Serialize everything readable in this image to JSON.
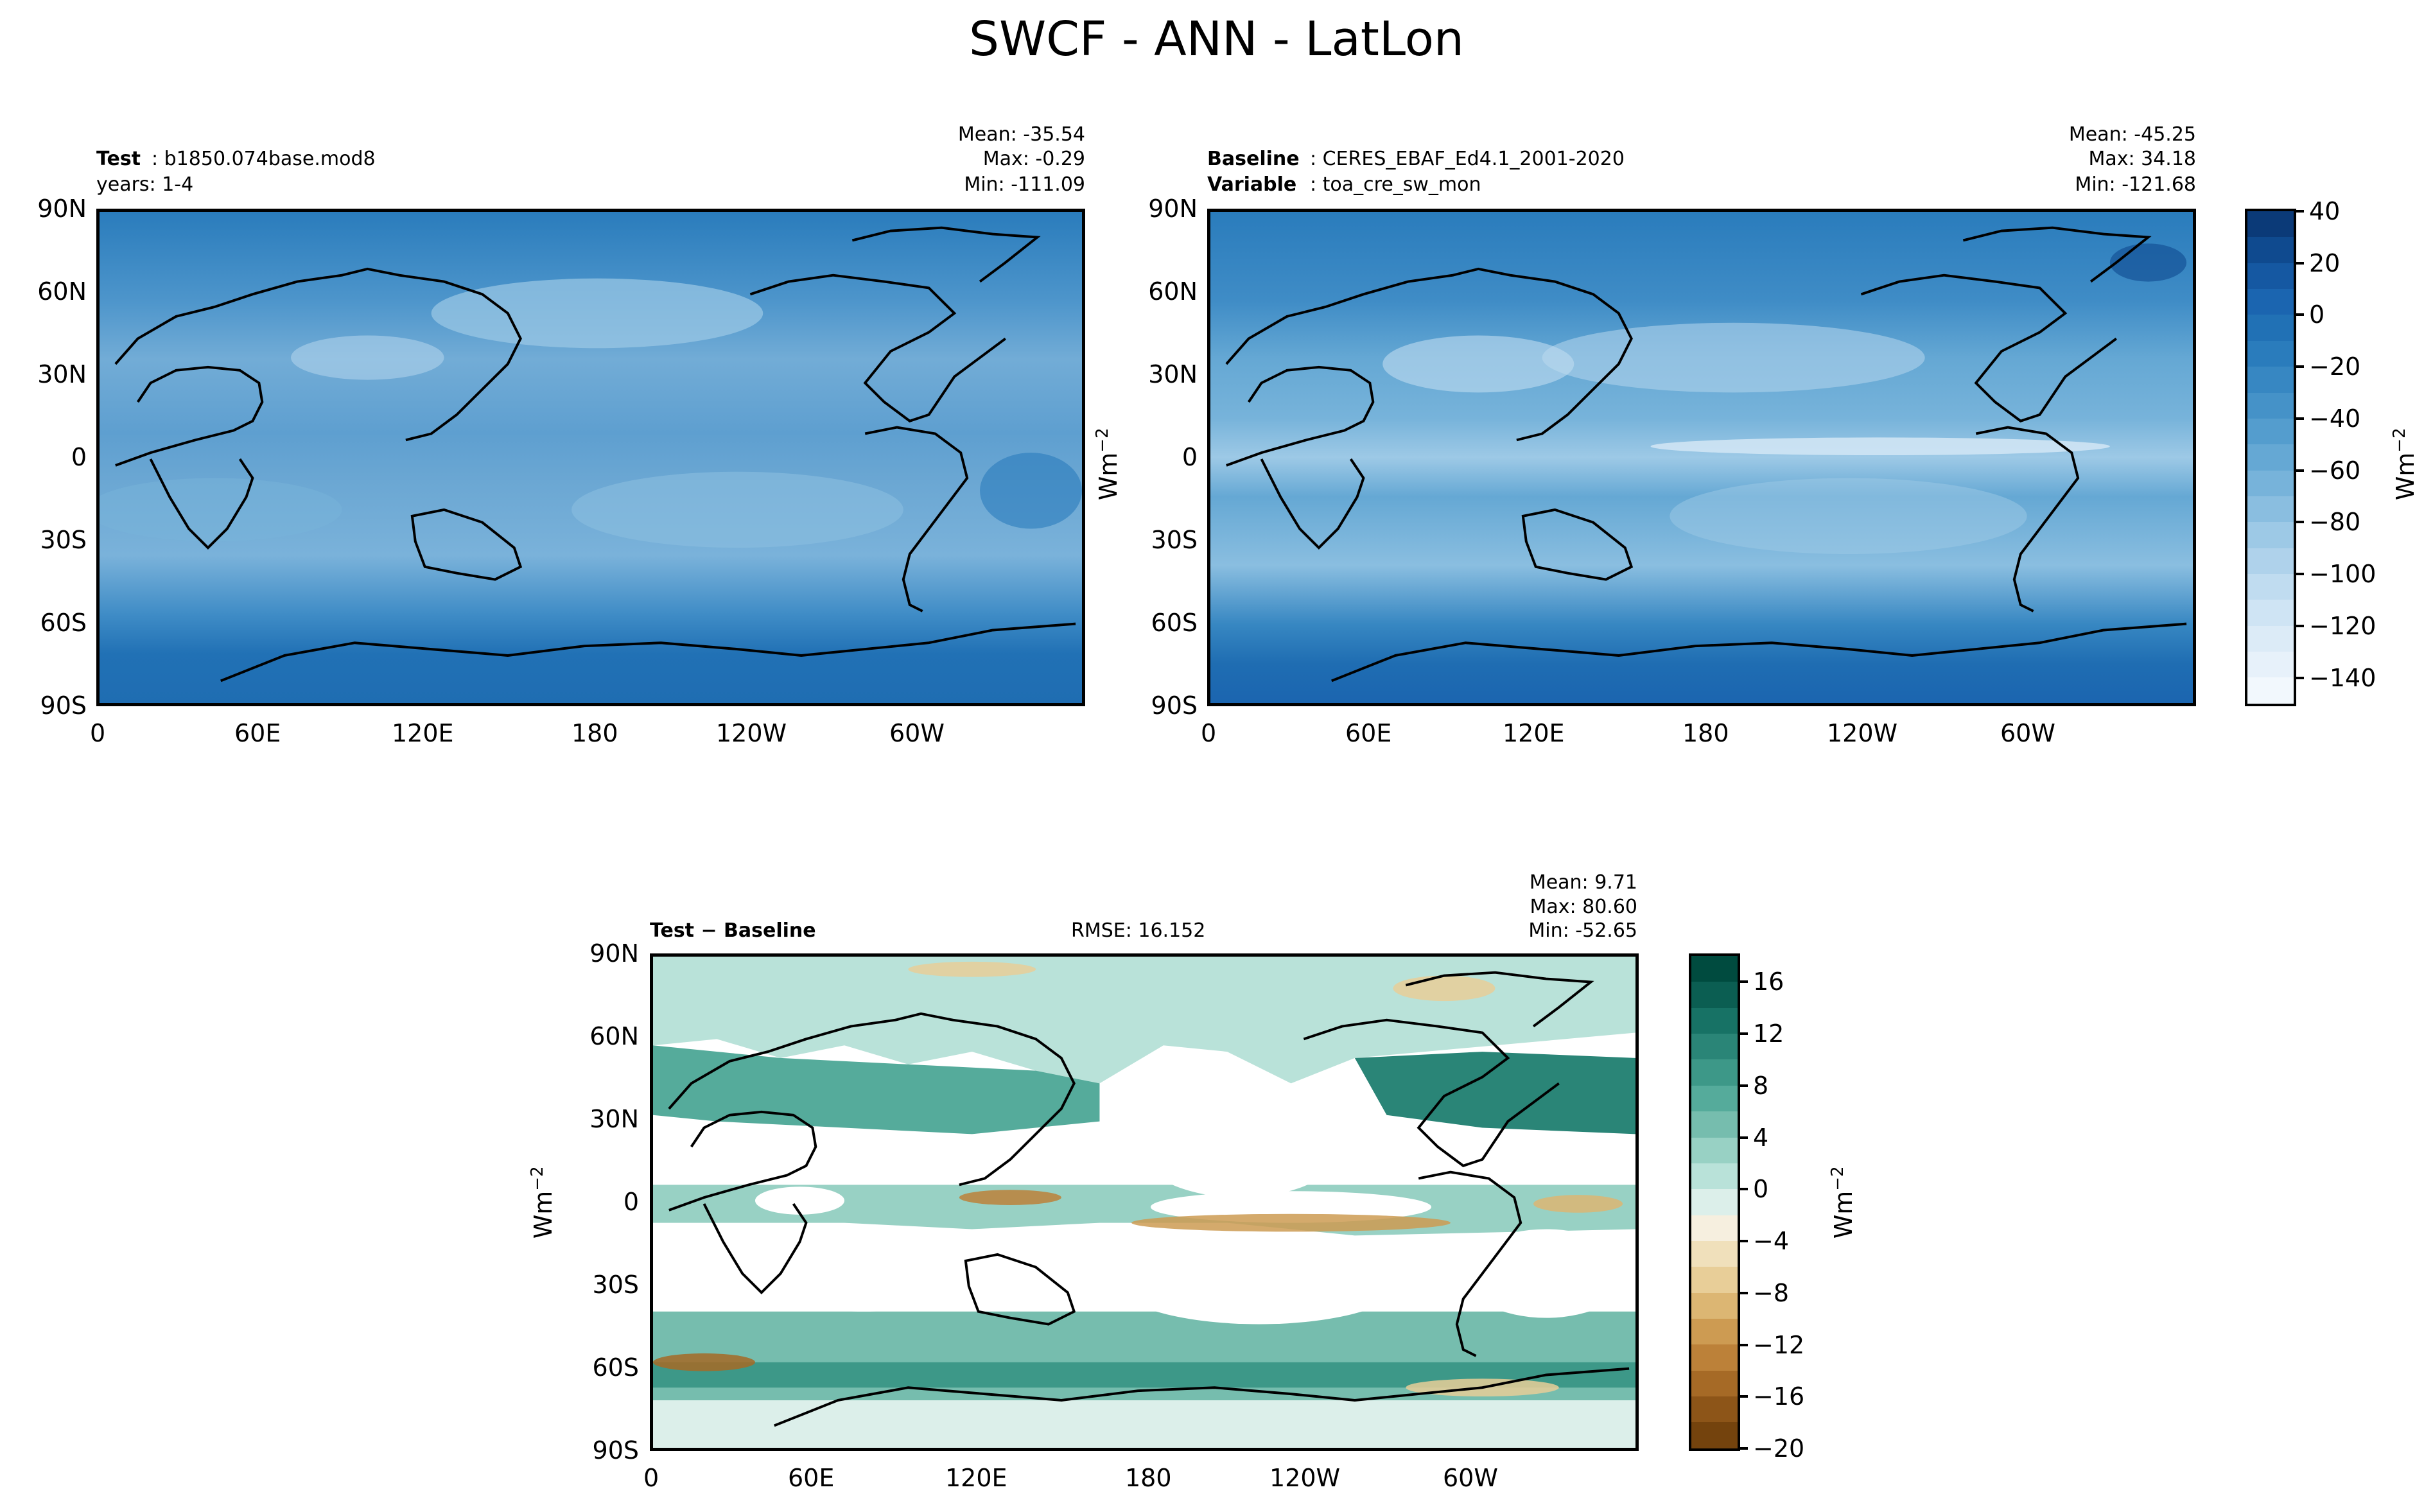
{
  "title": "SWCF - ANN - LatLon",
  "chart_data": [
    {
      "type": "heatmap",
      "name": "test",
      "label_bold": "Test",
      "label": ": b1850.074base.mod8",
      "years": "years: 1-4",
      "stats": {
        "mean": "Mean: -35.54",
        "max": "Max: -0.29",
        "min": "Min: -111.09"
      },
      "xticks": [
        "0",
        "60E",
        "120E",
        "180",
        "120W",
        "60W"
      ],
      "yticks": [
        "90N",
        "60N",
        "30N",
        "0",
        "30S",
        "60S",
        "90S"
      ],
      "colormap": "Blues",
      "color_range": [
        -150,
        40
      ]
    },
    {
      "type": "heatmap",
      "name": "baseline",
      "label_bold": "Baseline",
      "label": ": CERES_EBAF_Ed4.1_2001-2020",
      "variable_bold": "Variable",
      "variable": ": toa_cre_sw_mon",
      "stats": {
        "mean": "Mean: -45.25",
        "max": "Max: 34.18",
        "min": "Min: -121.68"
      },
      "xticks": [
        "0",
        "60E",
        "120E",
        "180",
        "120W",
        "60W"
      ],
      "yticks": [
        "90N",
        "60N",
        "30N",
        "0",
        "30S",
        "60S",
        "90S"
      ],
      "colorbar": {
        "ticks": [
          "40",
          "20",
          "0",
          "−20",
          "−40",
          "−60",
          "−80",
          "−100",
          "−120",
          "−140"
        ],
        "levels": [
          40,
          30,
          20,
          10,
          0,
          -10,
          -20,
          -30,
          -40,
          -50,
          -60,
          -70,
          -80,
          -90,
          -100,
          -110,
          -120,
          -130,
          -140,
          -150
        ],
        "colors": [
          "#0b3a78",
          "#0f4a8f",
          "#1558a2",
          "#1b65b0",
          "#2171b5",
          "#2a7cbc",
          "#3787c2",
          "#4592c8",
          "#549dce",
          "#65a8d4",
          "#77b3da",
          "#8abee0",
          "#9dc9e6",
          "#afd2eb",
          "#c0dcf0",
          "#cfe4f4",
          "#dcebf7",
          "#e7f1fa",
          "#f2f8fd"
        ],
        "units": "Wm",
        "units_sup": "−2"
      },
      "colormap": "Blues",
      "color_range": [
        -150,
        40
      ]
    },
    {
      "type": "heatmap",
      "name": "difference",
      "label_bold": "Test − Baseline",
      "rmse": "RMSE: 16.152",
      "stats": {
        "mean": "Mean:  9.71",
        "max": "Max: 80.60",
        "min": "Min: -52.65"
      },
      "xticks": [
        "0",
        "60E",
        "120E",
        "180",
        "120W",
        "60W"
      ],
      "yticks": [
        "90N",
        "60N",
        "30N",
        "0",
        "30S",
        "60S",
        "90S"
      ],
      "ylabel": "Wm",
      "ylabel_sup": "−2",
      "colorbar": {
        "ticks": [
          "16",
          "12",
          "8",
          "4",
          "0",
          "−4",
          "−8",
          "−12",
          "−16",
          "−20"
        ],
        "levels": [
          18,
          16,
          14,
          12,
          10,
          8,
          6,
          4,
          2,
          0,
          -2,
          -4,
          -6,
          -8,
          -10,
          -12,
          -14,
          -16,
          -18,
          -20
        ],
        "colors": [
          "#004b3f",
          "#0b5e52",
          "#177265",
          "#2a8577",
          "#3d9888",
          "#55ab9b",
          "#76bdae",
          "#98d1c4",
          "#b9e2d9",
          "#dcefea",
          "#f6efdf",
          "#f0e0bb",
          "#e8ce98",
          "#dcb673",
          "#cd9b52",
          "#bc8139",
          "#a66a26",
          "#8d5518",
          "#74430d"
        ],
        "units": "Wm",
        "units_sup": "−2"
      },
      "colormap": "BrBG",
      "color_range": [
        -20,
        18
      ]
    }
  ]
}
